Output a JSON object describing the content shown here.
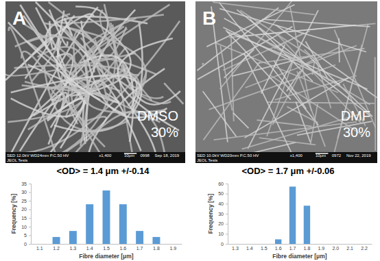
{
  "chart_data": [
    {
      "type": "bar",
      "title": "<OD> = 1.4 μm +/-0.14",
      "xlabel": "Fibre diameter [μm]",
      "ylabel": "Frequency [%]",
      "categories": [
        "1.1",
        "1.2",
        "1.3",
        "1.4",
        "1.5",
        "1.6",
        "1.7",
        "1.8",
        "1.9"
      ],
      "values": [
        0,
        4,
        7.5,
        23,
        31,
        23,
        7.5,
        4,
        0
      ],
      "color": "#5b9bd5",
      "ylim": [
        0,
        35
      ],
      "yticks": [
        0,
        5,
        10,
        15,
        20,
        25,
        30,
        35
      ],
      "image": {
        "label": "A",
        "annotation": [
          "DMSO",
          "30%"
        ],
        "info": [
          "SED 12.0kV WD24mm P.C.50 HV",
          "x1,400",
          "10μm",
          "0998",
          "Sep 18, 2019",
          "JEOL Tests"
        ]
      }
    },
    {
      "type": "bar",
      "title": "<OD> = 1.7 μm +/-0.06",
      "xlabel": "Fibre diameter [μm]",
      "ylabel": "Frequency [%]",
      "categories": [
        "1.3",
        "1.4",
        "1.5",
        "1.6",
        "1.7",
        "1.8",
        "1.9",
        "2.0",
        "2.1",
        "2.2"
      ],
      "values": [
        0,
        0,
        0,
        4.5,
        57,
        38,
        0,
        0,
        0,
        0
      ],
      "color": "#5b9bd5",
      "ylim": [
        0,
        60
      ],
      "yticks": [
        0,
        10,
        20,
        30,
        40,
        50,
        60
      ],
      "image": {
        "label": "B",
        "annotation": [
          "DMF",
          "30%"
        ],
        "info": [
          "SED 10.0kV WD20mm P.C.50 HV",
          "x1,400",
          "10μm",
          "0972",
          "Nov 22, 2019",
          "JEOL Tests"
        ]
      }
    }
  ]
}
